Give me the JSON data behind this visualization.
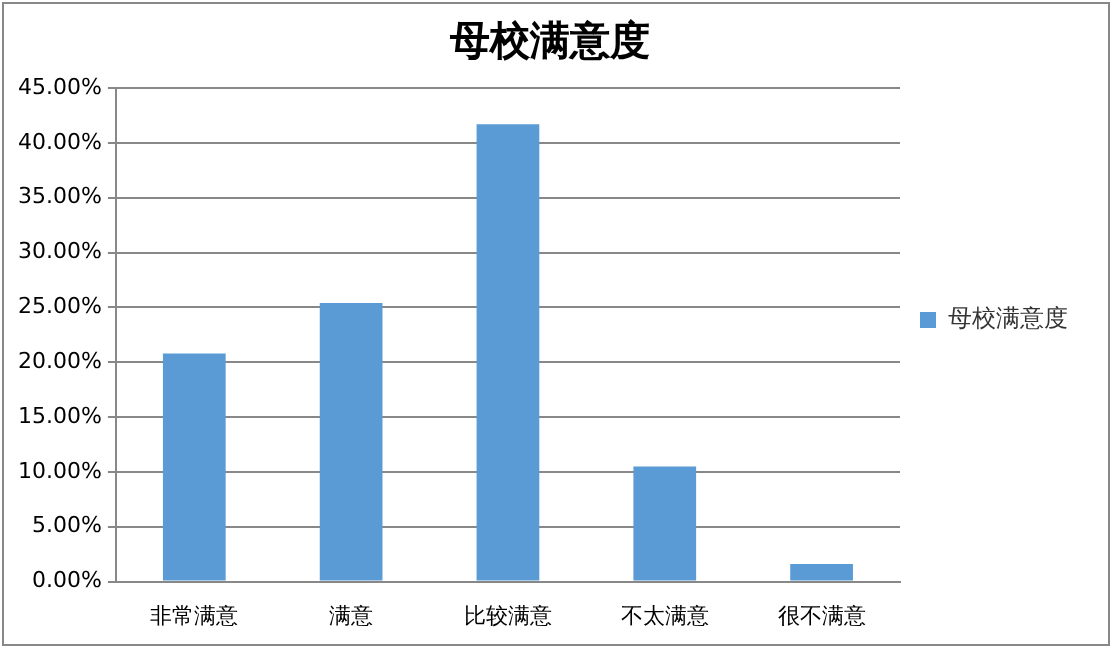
{
  "chart_data": {
    "type": "bar",
    "title": "母校满意度",
    "categories": [
      "非常满意",
      "满意",
      "比较满意",
      "不太满意",
      "很不满意"
    ],
    "series": [
      {
        "name": "母校满意度",
        "color": "#5b9bd5",
        "values": [
          20.8,
          25.4,
          41.7,
          10.5,
          1.6
        ]
      }
    ],
    "ylim": [
      0,
      45
    ],
    "yticks": [
      {
        "value": 0,
        "label": "0.00%"
      },
      {
        "value": 5,
        "label": "5.00%"
      },
      {
        "value": 10,
        "label": "10.00%"
      },
      {
        "value": 15,
        "label": "15.00%"
      },
      {
        "value": 20,
        "label": "20.00%"
      },
      {
        "value": 25,
        "label": "25.00%"
      },
      {
        "value": 30,
        "label": "30.00%"
      },
      {
        "value": 35,
        "label": "35.00%"
      },
      {
        "value": 40,
        "label": "40.00%"
      },
      {
        "value": 45,
        "label": "45.00%"
      }
    ],
    "grid": "y",
    "legend": "right"
  }
}
